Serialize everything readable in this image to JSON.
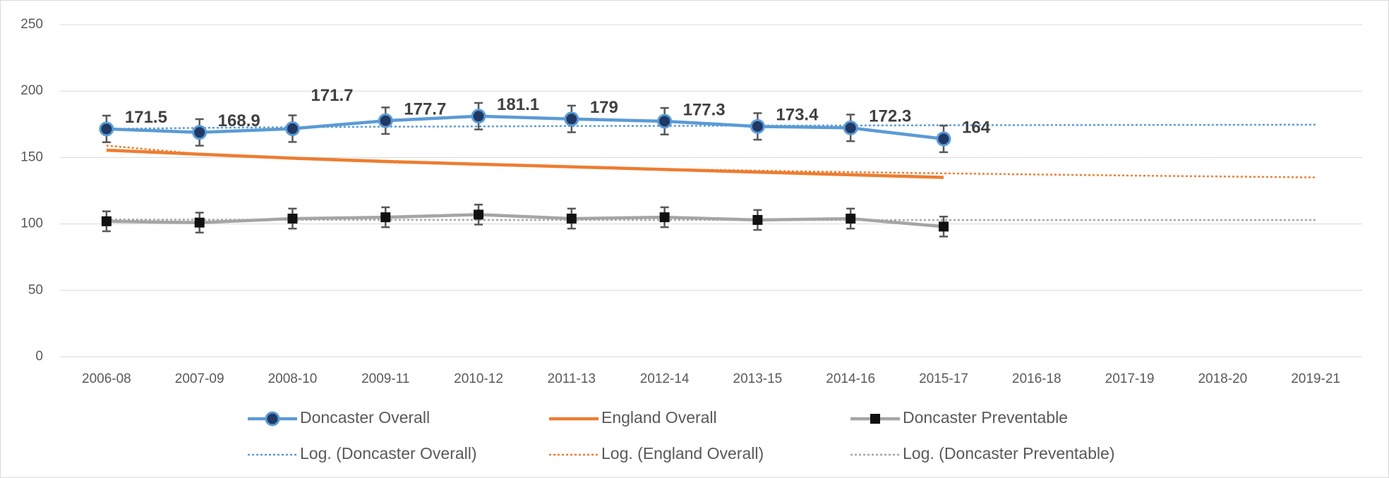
{
  "chart_data": {
    "type": "line",
    "categories": [
      "2006-08",
      "2007-09",
      "2008-10",
      "2009-11",
      "2010-12",
      "2011-13",
      "2012-14",
      "2013-15",
      "2014-16",
      "2015-17",
      "2016-18",
      "2017-19",
      "2018-20",
      "2019-21"
    ],
    "series": [
      {
        "name": "Doncaster Overall",
        "color": "#5b9bd5",
        "marker": "circle",
        "marker_color": "#203864",
        "data_labels": true,
        "values": [
          171.5,
          168.9,
          171.7,
          177.7,
          181.1,
          179,
          177.3,
          173.4,
          172.3,
          164,
          null,
          null,
          null,
          null
        ],
        "errors": [
          10,
          10,
          10,
          10,
          10,
          10,
          10,
          10,
          10,
          10,
          null,
          null,
          null,
          null
        ]
      },
      {
        "name": "England Overall",
        "color": "#ed7d31",
        "values": [
          155.5,
          152.5,
          149.5,
          147,
          145,
          143,
          141,
          139,
          137,
          135,
          null,
          null,
          null,
          null
        ]
      },
      {
        "name": "Doncaster Preventable",
        "color": "#a5a5a5",
        "marker": "square",
        "marker_color": "#111111",
        "values": [
          102,
          101,
          104,
          105,
          107,
          104,
          105,
          103,
          104,
          98,
          null,
          null,
          null,
          null
        ],
        "errors": [
          7.5,
          7.5,
          7.5,
          7.5,
          7.5,
          7.5,
          7.5,
          7.5,
          7.5,
          7.5,
          null,
          null,
          null,
          null
        ]
      },
      {
        "name": "Log. (Doncaster Overall)",
        "color": "#5b9bd5",
        "dashed": true,
        "values": [
          171.5,
          172.3,
          172.8,
          173.2,
          173.4,
          173.7,
          173.8,
          174.0,
          174.1,
          174.3,
          174.4,
          174.5,
          174.6,
          174.7
        ]
      },
      {
        "name": "Log. (England Overall)",
        "color": "#ed7d31",
        "dashed": true,
        "values": [
          159,
          152.7,
          149.0,
          146.4,
          144.4,
          142.7,
          141.3,
          140.1,
          139.0,
          138.1,
          137.2,
          136.4,
          135.7,
          135.0
        ]
      },
      {
        "name": "Log. (Doncaster Preventable)",
        "color": "#a5a5a5",
        "dashed": true,
        "values": [
          103.3,
          103.2,
          103.1,
          103.1,
          103.0,
          103.0,
          103.0,
          103.0,
          102.9,
          102.9,
          102.9,
          102.9,
          102.9,
          102.9
        ]
      }
    ],
    "ylim": [
      0,
      250
    ],
    "yticks": [
      0,
      50,
      100,
      150,
      200,
      250
    ],
    "grid": true
  }
}
